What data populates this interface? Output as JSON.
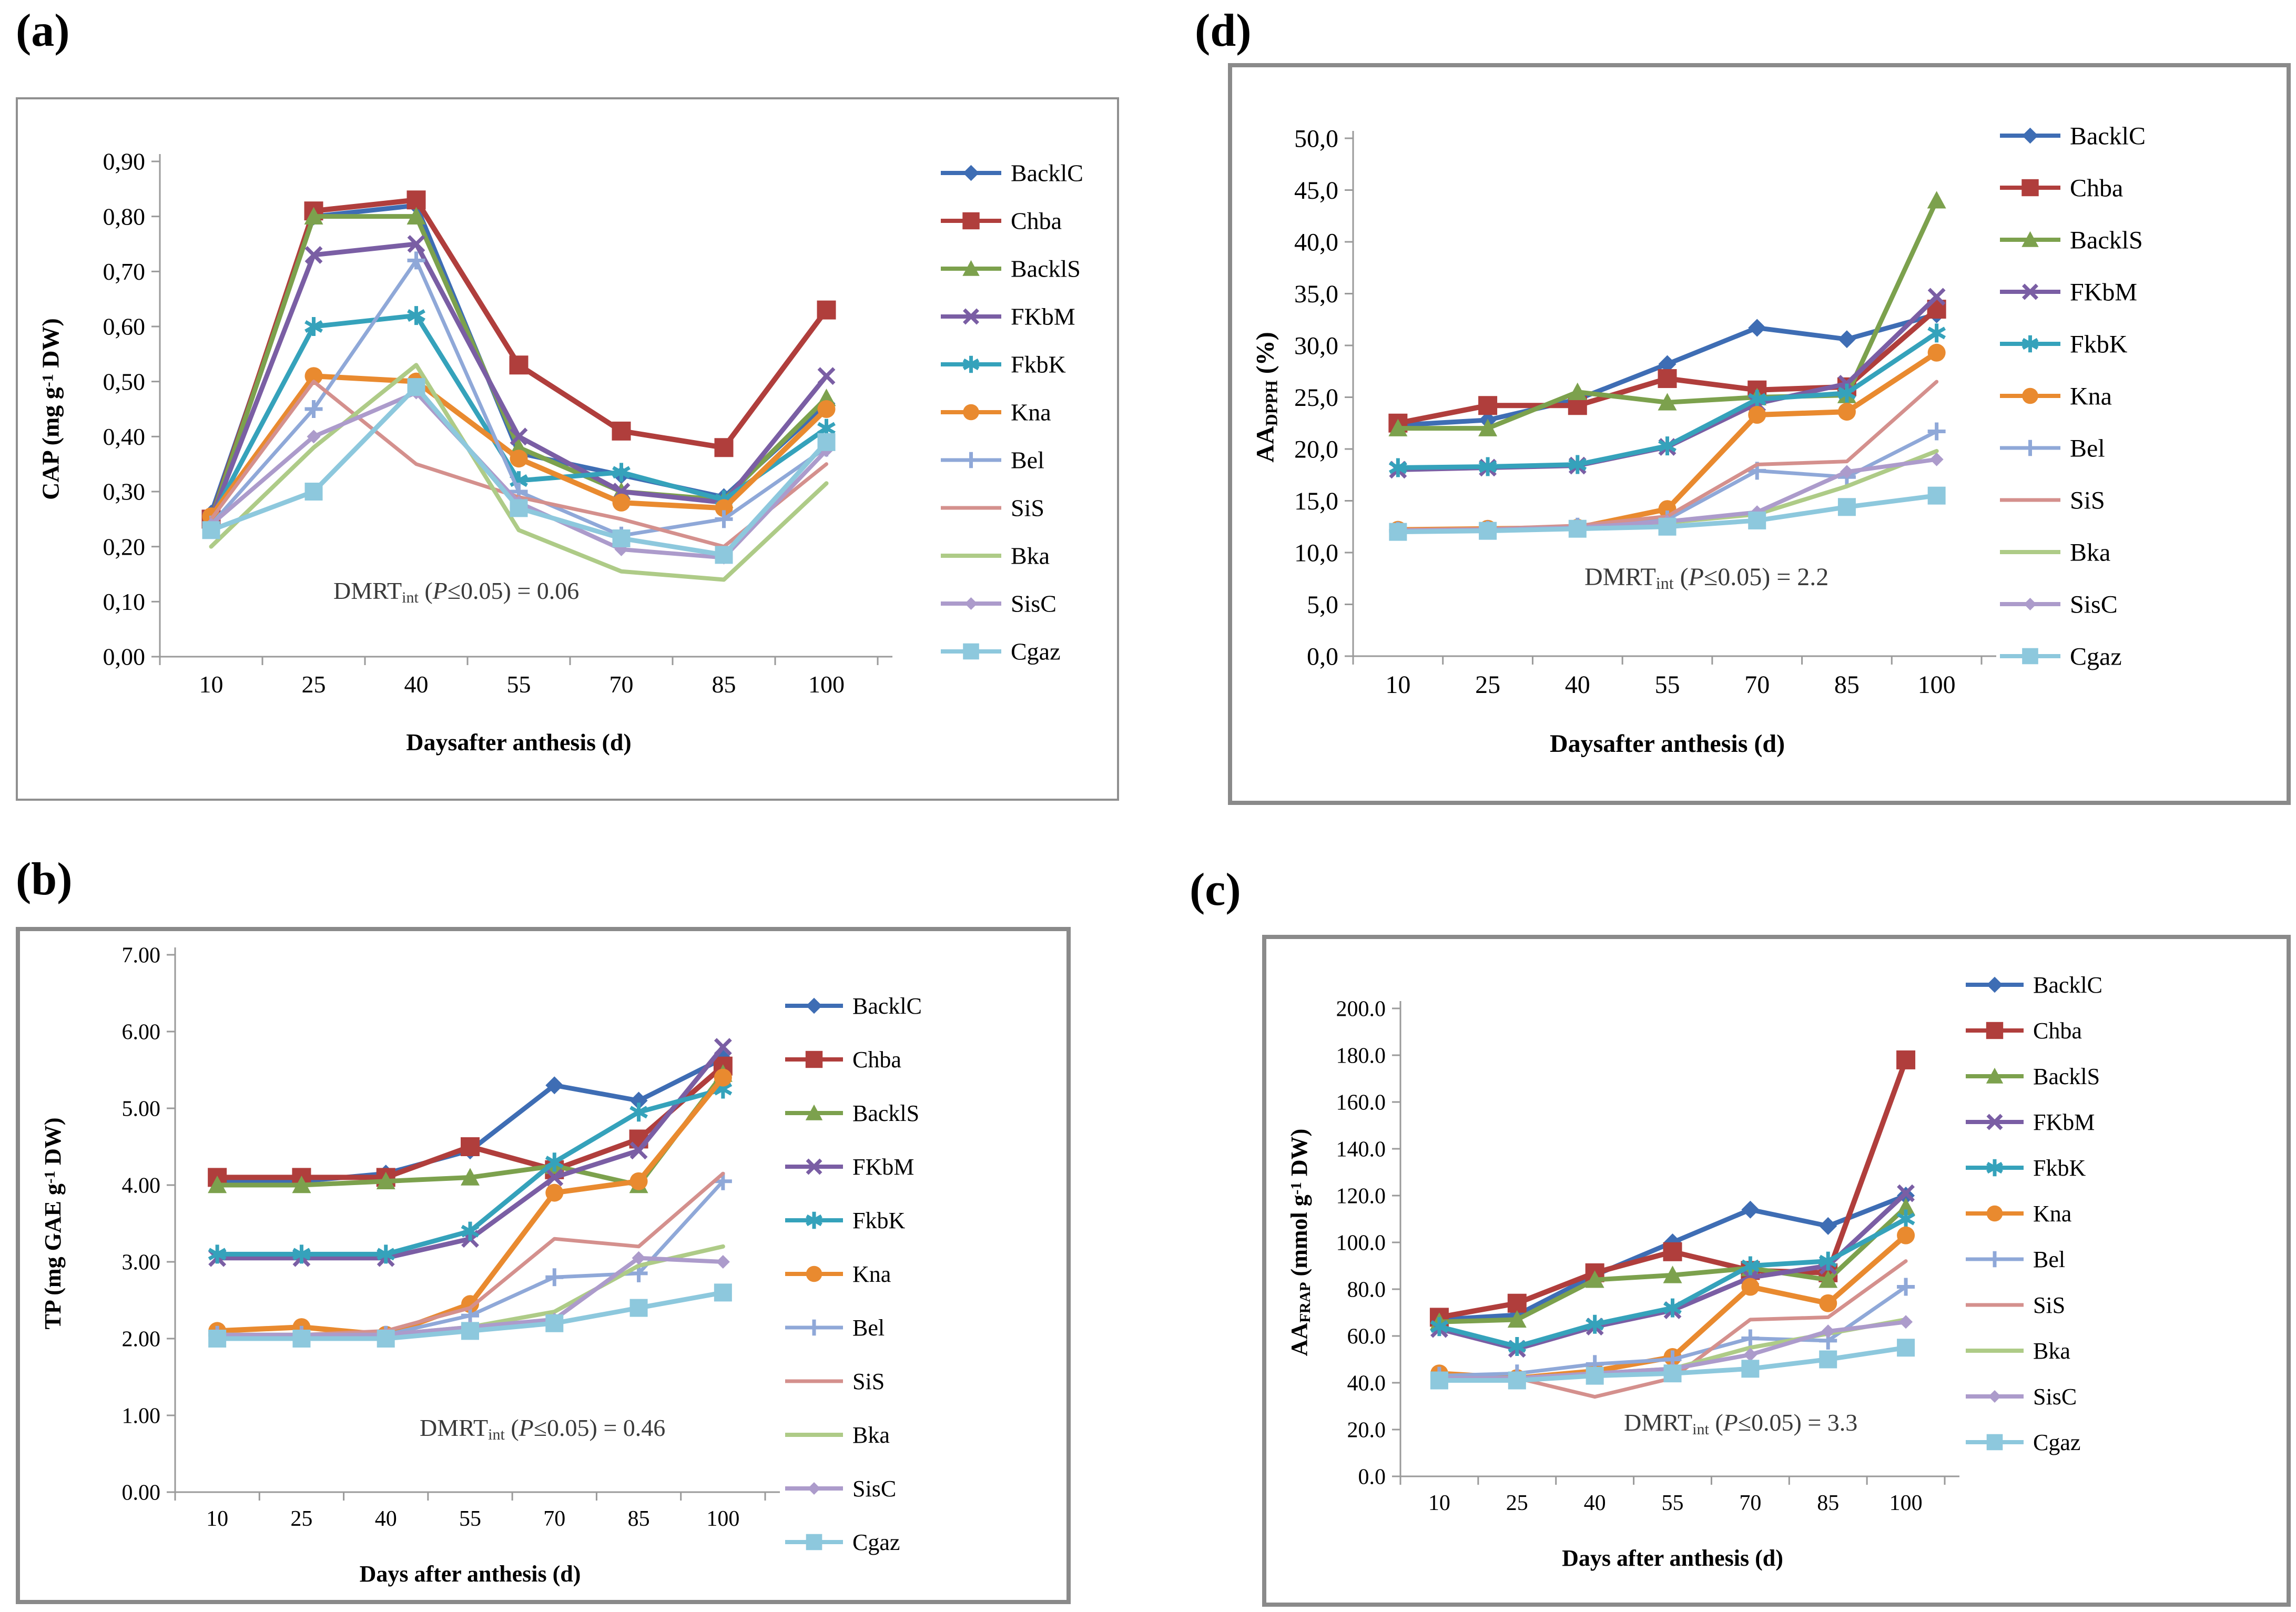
{
  "figure": {
    "background": "#ffffff",
    "axis_color": "#9a9a9a",
    "annotation_color": "#3a3a3a"
  },
  "series_defs": [
    {
      "key": "BacklC",
      "label": "BacklC",
      "color": "#3E6DB4",
      "marker": "diamond",
      "lw": 9,
      "ms": 17
    },
    {
      "key": "Chba",
      "label": "Chba",
      "color": "#B03E3C",
      "marker": "square",
      "lw": 10,
      "ms": 18
    },
    {
      "key": "BacklS",
      "label": "BacklS",
      "color": "#7CA14D",
      "marker": "triangle",
      "lw": 9,
      "ms": 18
    },
    {
      "key": "FKbM",
      "label": "FKbM",
      "color": "#7A5EA4",
      "marker": "x",
      "lw": 9,
      "ms": 17
    },
    {
      "key": "FkbK",
      "label": "FkbK",
      "color": "#35A2BB",
      "marker": "star",
      "lw": 9,
      "ms": 18
    },
    {
      "key": "Kna",
      "label": "Kna",
      "color": "#E98A2F",
      "marker": "circle",
      "lw": 10,
      "ms": 17
    },
    {
      "key": "Bel",
      "label": "Bel",
      "color": "#8FA8D8",
      "marker": "plus",
      "lw": 7,
      "ms": 17
    },
    {
      "key": "SiS",
      "label": "SiS",
      "color": "#D4908D",
      "marker": "none",
      "lw": 7,
      "ms": 0
    },
    {
      "key": "Bka",
      "label": "Bka",
      "color": "#AECB87",
      "marker": "none",
      "lw": 8,
      "ms": 0
    },
    {
      "key": "SisC",
      "label": "SisC",
      "color": "#AC9BCB",
      "marker": "diamond",
      "lw": 8,
      "ms": 13
    },
    {
      "key": "Cgaz",
      "label": "Cgaz",
      "color": "#8DC8DD",
      "marker": "square",
      "lw": 9,
      "ms": 17
    }
  ],
  "chart_data": [
    {
      "panel": "a",
      "label": "(a)",
      "type": "line",
      "ylabel_segments": [
        {
          "t": "CAP (mg g"
        },
        {
          "t": "-1",
          "v": "sup"
        },
        {
          "t": " DW)"
        }
      ],
      "xlabel": "Daysafter anthesis (d)",
      "categories": [
        10,
        25,
        40,
        55,
        70,
        85,
        100
      ],
      "ylim": [
        0,
        0.9
      ],
      "ystep": 0.1,
      "ydecimals": 2,
      "ydecimal_sep": ",",
      "grid": false,
      "legend_position": "right",
      "dmrt_value": "0.06",
      "dmrt_segments": [
        {
          "t": "DMRT"
        },
        {
          "t": "int",
          "v": "sub"
        },
        {
          "t": " ("
        },
        {
          "t": "P",
          "v": "i"
        },
        {
          "t": "≤0.05) = 0.06"
        }
      ],
      "series": [
        {
          "name": "BacklC",
          "values": [
            0.26,
            0.8,
            0.82,
            0.37,
            0.33,
            0.29,
            0.46
          ]
        },
        {
          "name": "Chba",
          "values": [
            0.25,
            0.81,
            0.83,
            0.53,
            0.41,
            0.38,
            0.63
          ]
        },
        {
          "name": "BacklS",
          "values": [
            0.25,
            0.8,
            0.8,
            0.38,
            0.3,
            0.285,
            0.47
          ]
        },
        {
          "name": "FKbM",
          "values": [
            0.25,
            0.73,
            0.75,
            0.4,
            0.3,
            0.28,
            0.51
          ]
        },
        {
          "name": "FkbK",
          "values": [
            0.25,
            0.6,
            0.62,
            0.32,
            0.335,
            0.285,
            0.415
          ]
        },
        {
          "name": "Kna",
          "values": [
            0.255,
            0.51,
            0.5,
            0.36,
            0.28,
            0.27,
            0.45
          ]
        },
        {
          "name": "Bel",
          "values": [
            0.24,
            0.45,
            0.72,
            0.3,
            0.22,
            0.25,
            0.38
          ]
        },
        {
          "name": "SiS",
          "values": [
            0.25,
            0.5,
            0.35,
            0.29,
            0.25,
            0.2,
            0.35
          ]
        },
        {
          "name": "Bka",
          "values": [
            0.2,
            0.38,
            0.53,
            0.23,
            0.155,
            0.14,
            0.315
          ]
        },
        {
          "name": "SisC",
          "values": [
            0.24,
            0.4,
            0.48,
            0.28,
            0.195,
            0.18,
            0.375
          ]
        },
        {
          "name": "Cgaz",
          "values": [
            0.23,
            0.3,
            0.49,
            0.27,
            0.215,
            0.185,
            0.39
          ]
        }
      ]
    },
    {
      "panel": "d",
      "label": "(d)",
      "type": "line",
      "ylabel_segments": [
        {
          "t": "AA"
        },
        {
          "t": "DPPH",
          "v": "sub"
        },
        {
          "t": " (%)"
        }
      ],
      "xlabel": "Daysafter anthesis (d)",
      "categories": [
        10,
        25,
        40,
        55,
        70,
        85,
        100
      ],
      "ylim": [
        0,
        50
      ],
      "ystep": 5,
      "ydecimals": 1,
      "ydecimal_sep": ",",
      "grid": false,
      "legend_position": "right",
      "dmrt_value": "2.2",
      "dmrt_segments": [
        {
          "t": "DMRT"
        },
        {
          "t": "int",
          "v": "sub"
        },
        {
          "t": " ("
        },
        {
          "t": "P",
          "v": "i"
        },
        {
          "t": "≤0.05) = 2.2"
        }
      ],
      "series": [
        {
          "name": "BacklC",
          "values": [
            22.3,
            22.8,
            24.8,
            28.2,
            31.7,
            30.6,
            33.0
          ]
        },
        {
          "name": "Chba",
          "values": [
            22.5,
            24.2,
            24.2,
            26.8,
            25.7,
            26.0,
            33.5
          ]
        },
        {
          "name": "BacklS",
          "values": [
            22.0,
            22.0,
            25.5,
            24.5,
            25.0,
            25.2,
            44.0
          ]
        },
        {
          "name": "FKbM",
          "values": [
            18.0,
            18.2,
            18.4,
            20.2,
            24.4,
            26.3,
            34.7
          ]
        },
        {
          "name": "FkbK",
          "values": [
            18.2,
            18.3,
            18.5,
            20.3,
            24.8,
            25.4,
            31.2
          ]
        },
        {
          "name": "Kna",
          "values": [
            12.2,
            12.3,
            12.4,
            14.2,
            23.3,
            23.6,
            29.3
          ]
        },
        {
          "name": "Bel",
          "values": [
            12.1,
            12.2,
            12.5,
            13.2,
            17.9,
            17.3,
            21.7
          ]
        },
        {
          "name": "SiS",
          "values": [
            12.2,
            12.3,
            12.6,
            13.5,
            18.5,
            18.8,
            26.5
          ]
        },
        {
          "name": "Bka",
          "values": [
            12.1,
            12.2,
            12.4,
            12.9,
            13.7,
            16.4,
            19.8
          ]
        },
        {
          "name": "SisC",
          "values": [
            12.1,
            12.2,
            12.4,
            13.0,
            13.9,
            17.8,
            19.0
          ]
        },
        {
          "name": "Cgaz",
          "values": [
            12.0,
            12.1,
            12.3,
            12.5,
            13.1,
            14.4,
            15.5
          ]
        }
      ]
    },
    {
      "panel": "b",
      "label": "(b)",
      "type": "line",
      "ylabel_segments": [
        {
          "t": "TP (mg GAE g"
        },
        {
          "t": "-1",
          "v": "sup"
        },
        {
          "t": " DW)"
        }
      ],
      "xlabel": "Days after anthesis (d)",
      "categories": [
        10,
        25,
        40,
        55,
        70,
        85,
        100
      ],
      "ylim": [
        0,
        7
      ],
      "ystep": 1,
      "ydecimals": 2,
      "ydecimal_sep": ".",
      "grid": false,
      "legend_position": "right",
      "dmrt_value": "0.46",
      "dmrt_segments": [
        {
          "t": "DMRT"
        },
        {
          "t": "int",
          "v": "sub"
        },
        {
          "t": " ("
        },
        {
          "t": "P",
          "v": "i"
        },
        {
          "t": "≤0.05) = 0.46"
        }
      ],
      "series": [
        {
          "name": "BacklC",
          "values": [
            4.05,
            4.05,
            4.15,
            4.45,
            5.3,
            5.1,
            5.65
          ]
        },
        {
          "name": "Chba",
          "values": [
            4.1,
            4.1,
            4.1,
            4.5,
            4.2,
            4.6,
            5.55
          ]
        },
        {
          "name": "BacklS",
          "values": [
            4.0,
            4.0,
            4.05,
            4.1,
            4.25,
            4.0,
            5.45
          ]
        },
        {
          "name": "FKbM",
          "values": [
            3.05,
            3.05,
            3.05,
            3.3,
            4.1,
            4.45,
            5.8
          ]
        },
        {
          "name": "FkbK",
          "values": [
            3.1,
            3.1,
            3.1,
            3.4,
            4.3,
            4.95,
            5.25
          ]
        },
        {
          "name": "Kna",
          "values": [
            2.1,
            2.15,
            2.05,
            2.45,
            3.9,
            4.05,
            5.4
          ]
        },
        {
          "name": "Bel",
          "values": [
            2.05,
            2.05,
            2.05,
            2.3,
            2.8,
            2.85,
            4.05
          ]
        },
        {
          "name": "SiS",
          "values": [
            2.05,
            2.05,
            2.1,
            2.4,
            3.3,
            3.2,
            4.15
          ]
        },
        {
          "name": "Bka",
          "values": [
            2.05,
            2.05,
            2.05,
            2.15,
            2.35,
            2.95,
            3.2
          ]
        },
        {
          "name": "SisC",
          "values": [
            2.05,
            2.05,
            2.05,
            2.15,
            2.25,
            3.05,
            3.0
          ]
        },
        {
          "name": "Cgaz",
          "values": [
            2.0,
            2.0,
            2.0,
            2.1,
            2.2,
            2.4,
            2.6
          ]
        }
      ]
    },
    {
      "panel": "c",
      "label": "(c)",
      "type": "line",
      "ylabel_segments": [
        {
          "t": "AA"
        },
        {
          "t": "FRAP",
          "v": "sub"
        },
        {
          "t": " (mmol g"
        },
        {
          "t": "-1",
          "v": "sup"
        },
        {
          "t": " DW)"
        }
      ],
      "xlabel": "Days after anthesis (d)",
      "categories": [
        10,
        25,
        40,
        55,
        70,
        85,
        100
      ],
      "ylim": [
        0,
        200
      ],
      "ystep": 20,
      "ydecimals": 1,
      "ydecimal_sep": ".",
      "grid": false,
      "legend_position": "right",
      "dmrt_value": "3.3",
      "dmrt_segments": [
        {
          "t": "DMRT"
        },
        {
          "t": "int",
          "v": "sub"
        },
        {
          "t": " ("
        },
        {
          "t": "P",
          "v": "i"
        },
        {
          "t": "≤0.05) = 3.3"
        }
      ],
      "series": [
        {
          "name": "BacklC",
          "values": [
            67,
            69,
            86,
            100,
            114,
            107,
            120
          ]
        },
        {
          "name": "Chba",
          "values": [
            68,
            74,
            87,
            96,
            88,
            87,
            178
          ]
        },
        {
          "name": "BacklS",
          "values": [
            66,
            67,
            84,
            86,
            89,
            84,
            115
          ]
        },
        {
          "name": "FKbM",
          "values": [
            63,
            54.5,
            64,
            71,
            85,
            90,
            121
          ]
        },
        {
          "name": "FkbK",
          "values": [
            64,
            55.5,
            65,
            72,
            90,
            92,
            110
          ]
        },
        {
          "name": "Kna",
          "values": [
            44,
            42,
            45,
            51,
            81,
            74,
            103
          ]
        },
        {
          "name": "Bel",
          "values": [
            43,
            44,
            48,
            50,
            59,
            58,
            81
          ]
        },
        {
          "name": "SiS",
          "values": [
            42,
            42,
            34,
            42,
            67,
            68,
            92
          ]
        },
        {
          "name": "Bka",
          "values": [
            42,
            42,
            44,
            46,
            55,
            61,
            67
          ]
        },
        {
          "name": "SisC",
          "values": [
            42,
            42,
            44,
            46,
            52,
            62,
            66
          ]
        },
        {
          "name": "Cgaz",
          "values": [
            41,
            41,
            43,
            44,
            46,
            50,
            55
          ]
        }
      ]
    }
  ]
}
